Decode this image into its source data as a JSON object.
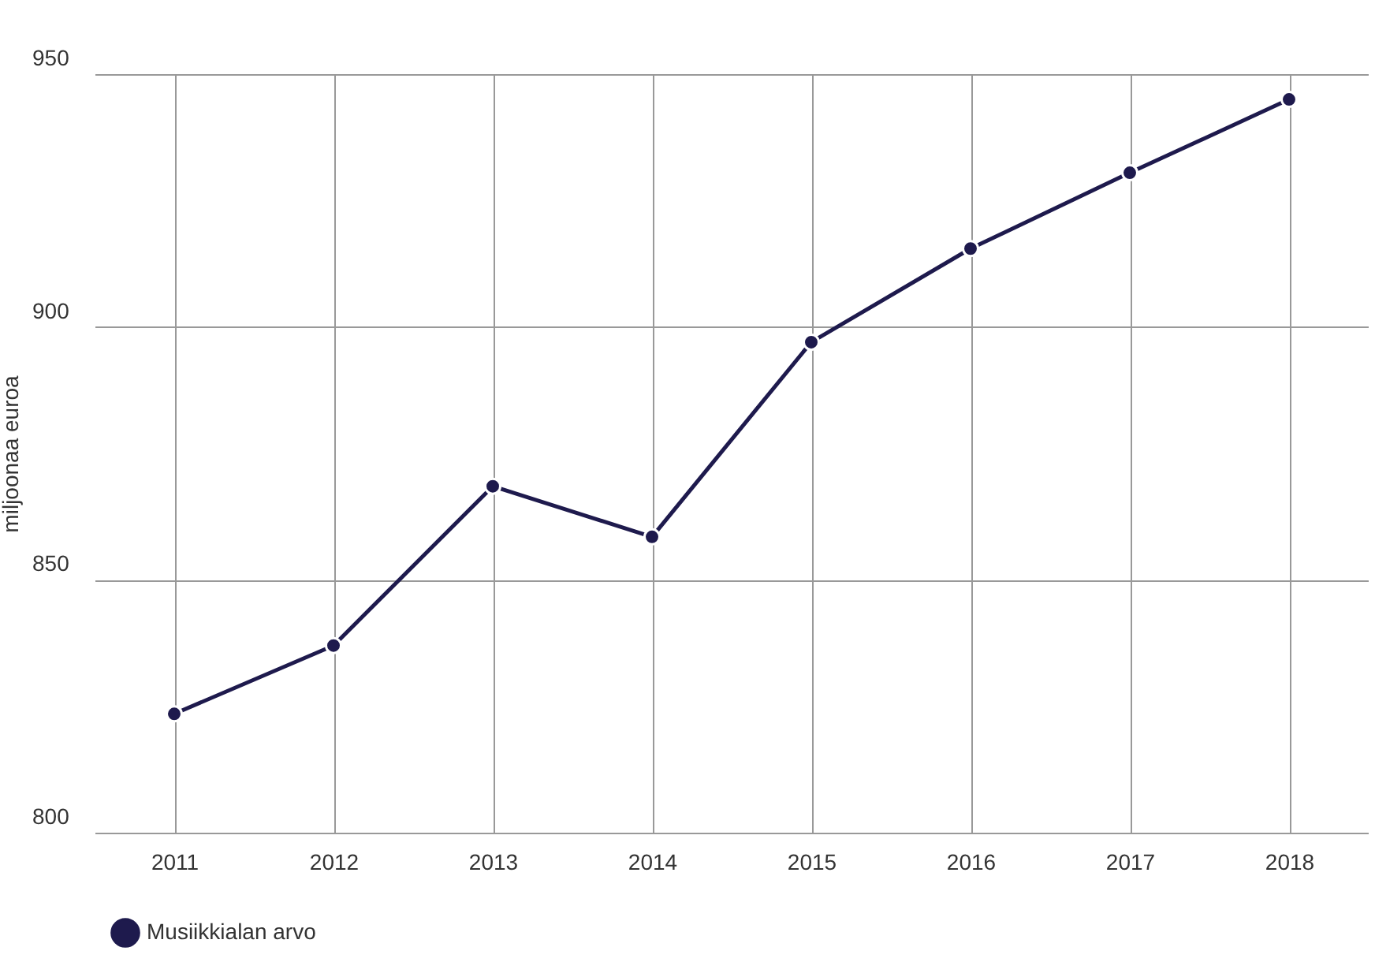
{
  "chart_data": {
    "type": "line",
    "ylabel": "miljoonaa euroa",
    "categories": [
      "2011",
      "2012",
      "2013",
      "2014",
      "2015",
      "2016",
      "2017",
      "2018"
    ],
    "series": [
      {
        "name": "Musiikkialan arvo",
        "color": "#1e1a4d",
        "values": [
          823.5,
          837,
          868.5,
          858.5,
          897,
          915.5,
          930.5,
          945
        ]
      }
    ],
    "ylim": [
      800,
      950
    ],
    "yticks": [
      800,
      850,
      900,
      950
    ],
    "grid": true,
    "legend": "bottom",
    "marker": "circle",
    "line_style": "solid"
  }
}
